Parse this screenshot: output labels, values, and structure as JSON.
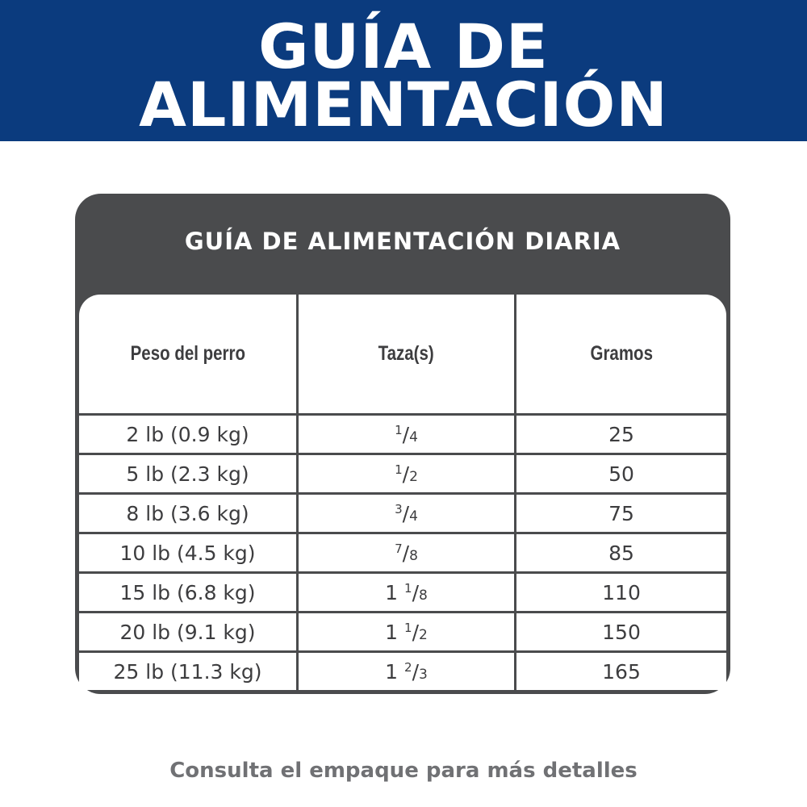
{
  "banner": {
    "line1": "GUÍA DE",
    "line2": "ALIMENTACIÓN",
    "color": "#0b3b7e"
  },
  "card": {
    "title": "GUÍA DE ALIMENTACIÓN DIARIA",
    "color": "#4a4b4d"
  },
  "table": {
    "headers": [
      "Peso del perro",
      "Taza(s)",
      "Gramos"
    ],
    "rows": [
      {
        "weight": "2 lb (0.9 kg)",
        "cups": {
          "whole": "",
          "num": "1",
          "den": "4"
        },
        "grams": "25"
      },
      {
        "weight": "5 lb (2.3 kg)",
        "cups": {
          "whole": "",
          "num": "1",
          "den": "2"
        },
        "grams": "50"
      },
      {
        "weight": "8 lb (3.6 kg)",
        "cups": {
          "whole": "",
          "num": "3",
          "den": "4"
        },
        "grams": "75"
      },
      {
        "weight": "10 lb (4.5 kg)",
        "cups": {
          "whole": "",
          "num": "7",
          "den": "8"
        },
        "grams": "85"
      },
      {
        "weight": "15 lb (6.8 kg)",
        "cups": {
          "whole": "1",
          "num": "1",
          "den": "8"
        },
        "grams": "110"
      },
      {
        "weight": "20 lb (9.1 kg)",
        "cups": {
          "whole": "1",
          "num": "1",
          "den": "2"
        },
        "grams": "150"
      },
      {
        "weight": "25 lb (11.3 kg)",
        "cups": {
          "whole": "1",
          "num": "2",
          "den": "3"
        },
        "grams": "165"
      }
    ]
  },
  "footer": {
    "text": "Consulta el empaque para más detalles"
  }
}
